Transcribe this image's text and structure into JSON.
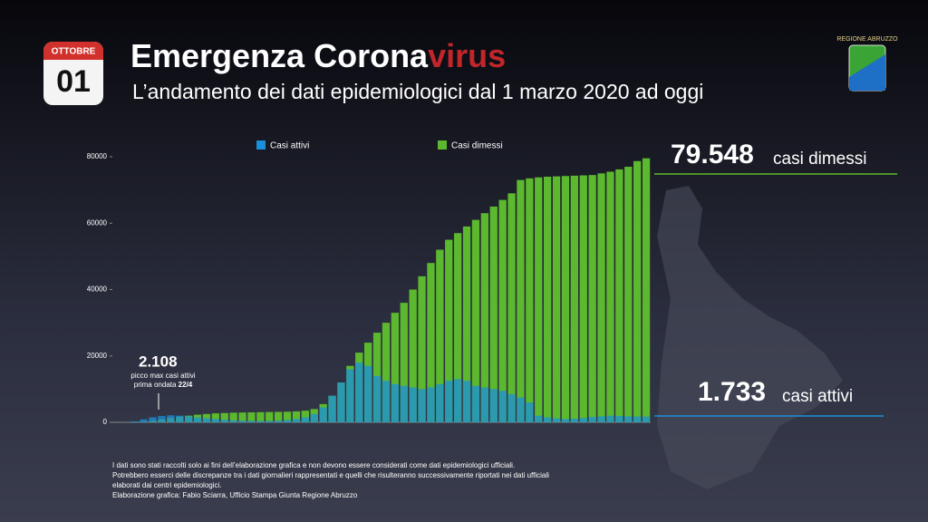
{
  "header": {
    "month": "OTTOBRE",
    "day": "01",
    "title_main": "Emergenza Corona",
    "title_accent": "virus",
    "subtitle": "L’andamento dei dati epidemiologici dal 1 marzo 2020 ad oggi",
    "logo": "REGIONE ABRUZZO"
  },
  "summary": {
    "dimessi_number": "79.548",
    "dimessi_label": "casi dimessi",
    "attivi_number": "1.733",
    "attivi_label": "casi attivi"
  },
  "annotation": {
    "value": "2.108",
    "line1": "picco max casi attivi",
    "line2": "prima ondata ",
    "date": "22/4"
  },
  "footnote": [
    "I dati sono stati raccolti solo ai fini dell’elaborazione grafica e non devono essere considerati come dati epidemiologici ufficiali.",
    "Potrebbero esserci delle discrepanze tra i dati giornalieri rappresentati e quelli che risulteranno successivamente riportati nei dati ufficiali",
    "elaborati dai centri epidemiologici.",
    "Elaborazione grafica: Fabio Sciarra, Ufficio Stampa Giunta Regione Abruzzo"
  ],
  "chart_data": {
    "type": "bar",
    "categories": [
      null,
      null,
      null,
      null,
      null,
      null,
      null,
      null,
      null,
      null,
      null,
      null,
      null,
      null,
      null,
      null,
      null,
      null,
      null,
      null,
      null,
      null,
      null,
      null,
      null,
      null,
      null,
      null,
      null,
      null,
      null,
      null,
      null,
      null,
      null,
      null,
      null,
      null,
      null,
      null,
      null,
      null,
      null,
      null,
      null,
      null,
      null,
      null,
      null,
      null,
      null,
      null,
      null,
      null,
      null,
      null,
      null,
      null,
      null,
      null
    ],
    "series": [
      {
        "name": "Casi dimessi",
        "color": "#5cb82e",
        "values": [
          0,
          0,
          50,
          200,
          500,
          900,
          1300,
          1700,
          2000,
          2300,
          2500,
          2700,
          2800,
          2900,
          2950,
          3000,
          3050,
          3100,
          3150,
          3200,
          3300,
          3500,
          4000,
          5500,
          8000,
          12000,
          17000,
          21000,
          24000,
          27000,
          30000,
          33000,
          36000,
          40000,
          44000,
          48000,
          52000,
          55000,
          57000,
          59000,
          61000,
          63000,
          65000,
          67000,
          69000,
          73000,
          73500,
          73800,
          74000,
          74100,
          74200,
          74300,
          74400,
          74500,
          75000,
          75500,
          76200,
          77000,
          78700,
          79548
        ]
      },
      {
        "name": "Casi attivi",
        "color": "#1b8fd9",
        "values": [
          0,
          50,
          300,
          900,
          1500,
          1900,
          2108,
          2000,
          1800,
          1500,
          1200,
          1000,
          800,
          600,
          500,
          450,
          400,
          420,
          500,
          700,
          1000,
          1500,
          2500,
          4500,
          8000,
          12000,
          16000,
          18000,
          17000,
          14000,
          12500,
          11500,
          11000,
          10500,
          10000,
          10500,
          11500,
          12500,
          13000,
          12500,
          11000,
          10500,
          10000,
          9500,
          8500,
          7500,
          6000,
          2000,
          1500,
          1200,
          1000,
          1100,
          1300,
          1600,
          1800,
          2000,
          1900,
          1800,
          1750,
          1733
        ]
      }
    ],
    "legend_order": [
      1,
      0
    ],
    "ylim": [
      0,
      80000
    ],
    "yticks": [
      0,
      20000,
      40000,
      60000,
      80000
    ],
    "grid": false
  }
}
